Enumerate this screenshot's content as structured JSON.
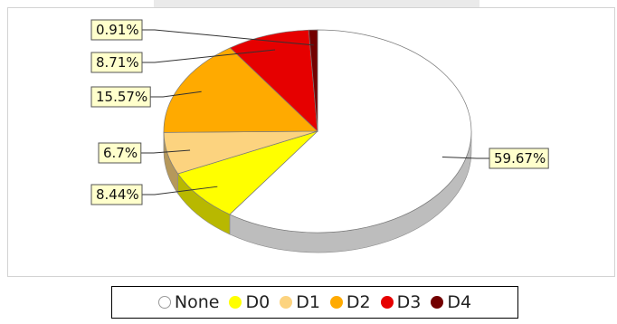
{
  "chart_data": {
    "type": "pie",
    "title": "",
    "categories": [
      "None",
      "D0",
      "D1",
      "D2",
      "D3",
      "D4"
    ],
    "values": [
      59.67,
      8.44,
      6.7,
      15.57,
      8.71,
      0.91
    ],
    "labels": [
      "59.67%",
      "8.44%",
      "6.7%",
      "15.57%",
      "8.71%",
      "0.91%"
    ],
    "colors": [
      "#ffffff",
      "#ffff00",
      "#fcd37f",
      "#ffaa00",
      "#e60000",
      "#730000"
    ],
    "legend_position": "bottom",
    "style": "3d"
  },
  "legend": [
    {
      "label": "None",
      "color": "#ffffff"
    },
    {
      "label": "D0",
      "color": "#ffff00"
    },
    {
      "label": "D1",
      "color": "#fcd37f"
    },
    {
      "label": "D2",
      "color": "#ffaa00"
    },
    {
      "label": "D3",
      "color": "#e60000"
    },
    {
      "label": "D4",
      "color": "#730000"
    }
  ]
}
